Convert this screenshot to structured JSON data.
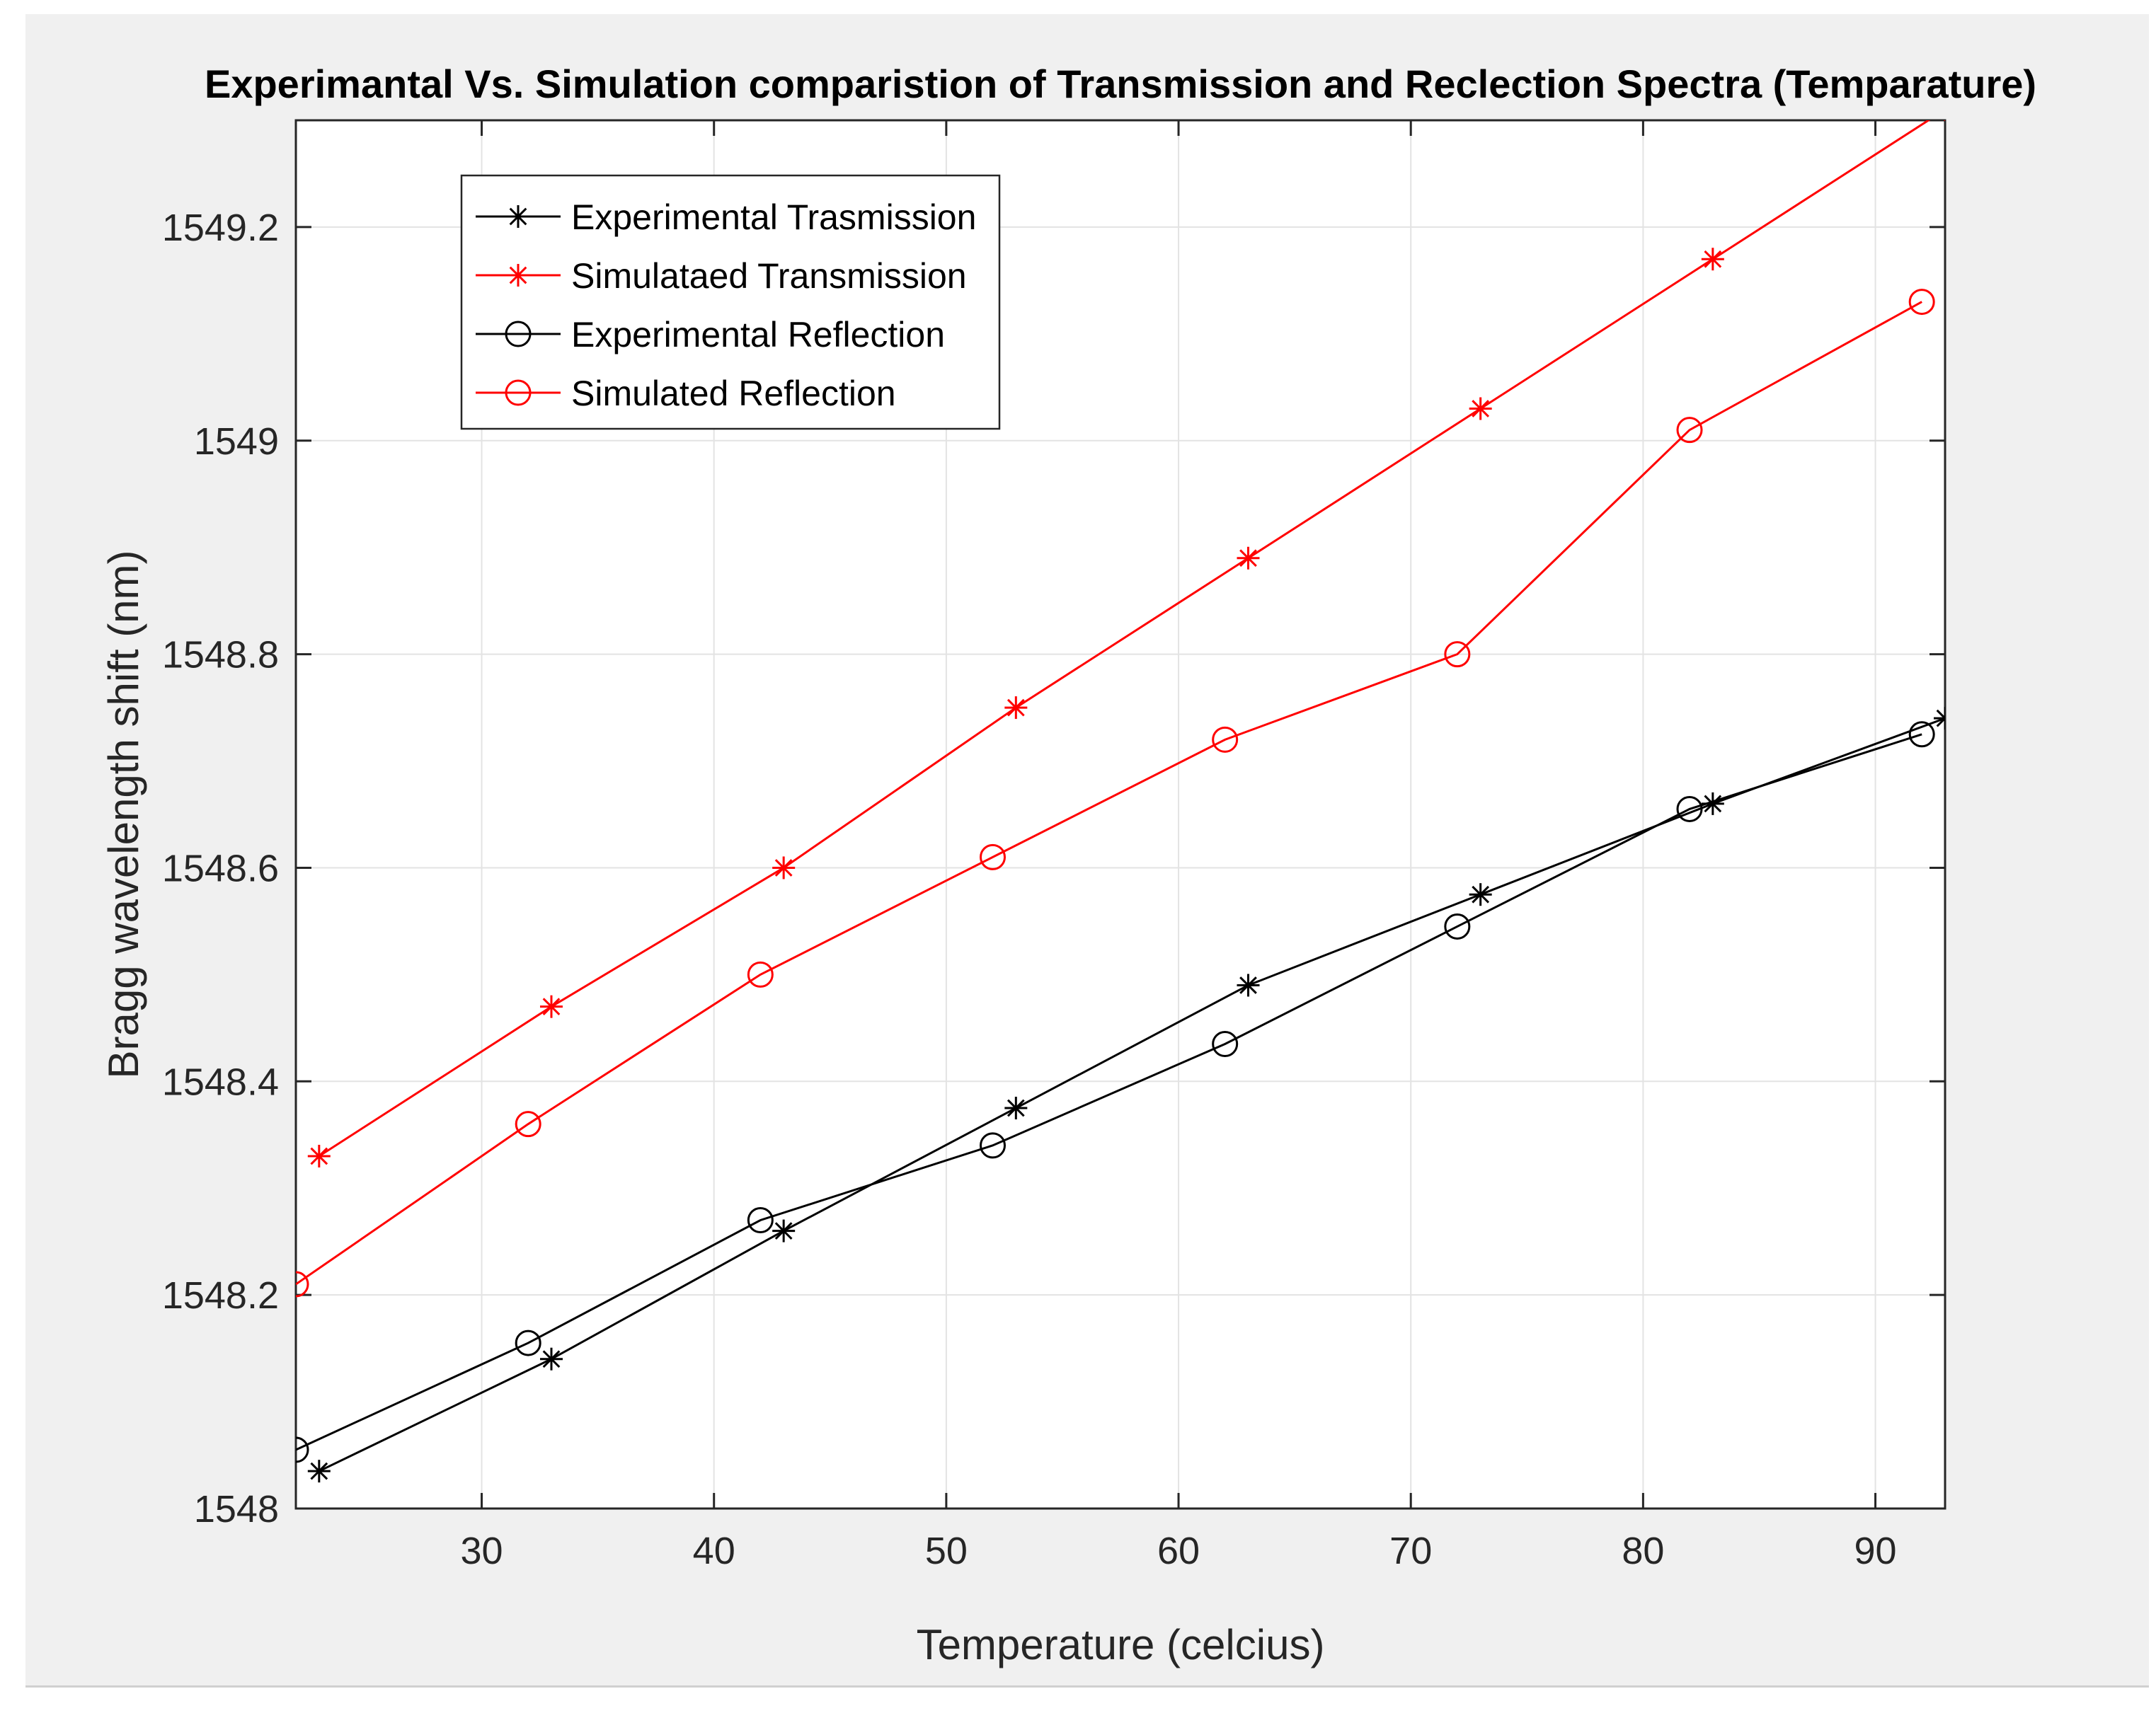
{
  "chart_data": {
    "type": "line",
    "title": "Experimantal Vs. Simulation comparistion of Transmission and Reclection Spectra (Temparature)",
    "xlabel": "Temperature (celcius)",
    "ylabel": "Bragg wavelength shift (nm)",
    "xlim": [
      22,
      93
    ],
    "ylim": [
      1548,
      1549.3
    ],
    "xticks": [
      30,
      40,
      50,
      60,
      70,
      80,
      90
    ],
    "yticks": [
      1548,
      1548.2,
      1548.4,
      1548.6,
      1548.8,
      1549,
      1549.2
    ],
    "ytick_labels": [
      "1548",
      "1548.2",
      "1548.4",
      "1548.6",
      "1548.8",
      "1549",
      "1549.2"
    ],
    "grid": true,
    "legend_position": "top-left",
    "series": [
      {
        "name": "Experimental Trasmission",
        "color": "#000000",
        "marker": "star",
        "x": [
          23,
          33,
          43,
          53,
          63,
          73,
          83,
          93
        ],
        "y": [
          1548.035,
          1548.14,
          1548.26,
          1548.375,
          1548.49,
          1548.575,
          1548.66,
          1548.74
        ]
      },
      {
        "name": "Simulataed Transmission",
        "color": "#ff0000",
        "marker": "star",
        "x": [
          23,
          33,
          43,
          53,
          63,
          73,
          83,
          93
        ],
        "y": [
          1548.33,
          1548.47,
          1548.6,
          1548.75,
          1548.89,
          1549.03,
          1549.17,
          1549.31
        ]
      },
      {
        "name": "Experimental Reflection",
        "color": "#000000",
        "marker": "circle",
        "x": [
          22,
          32,
          42,
          52,
          62,
          72,
          82,
          92
        ],
        "y": [
          1548.055,
          1548.155,
          1548.27,
          1548.34,
          1548.435,
          1548.545,
          1548.655,
          1548.725
        ]
      },
      {
        "name": "Simulated Reflection",
        "color": "#ff0000",
        "marker": "circle",
        "x": [
          22,
          32,
          42,
          52,
          62,
          72,
          82,
          92
        ],
        "y": [
          1548.21,
          1548.36,
          1548.5,
          1548.61,
          1548.72,
          1548.8,
          1549.01,
          1549.13
        ]
      }
    ]
  }
}
